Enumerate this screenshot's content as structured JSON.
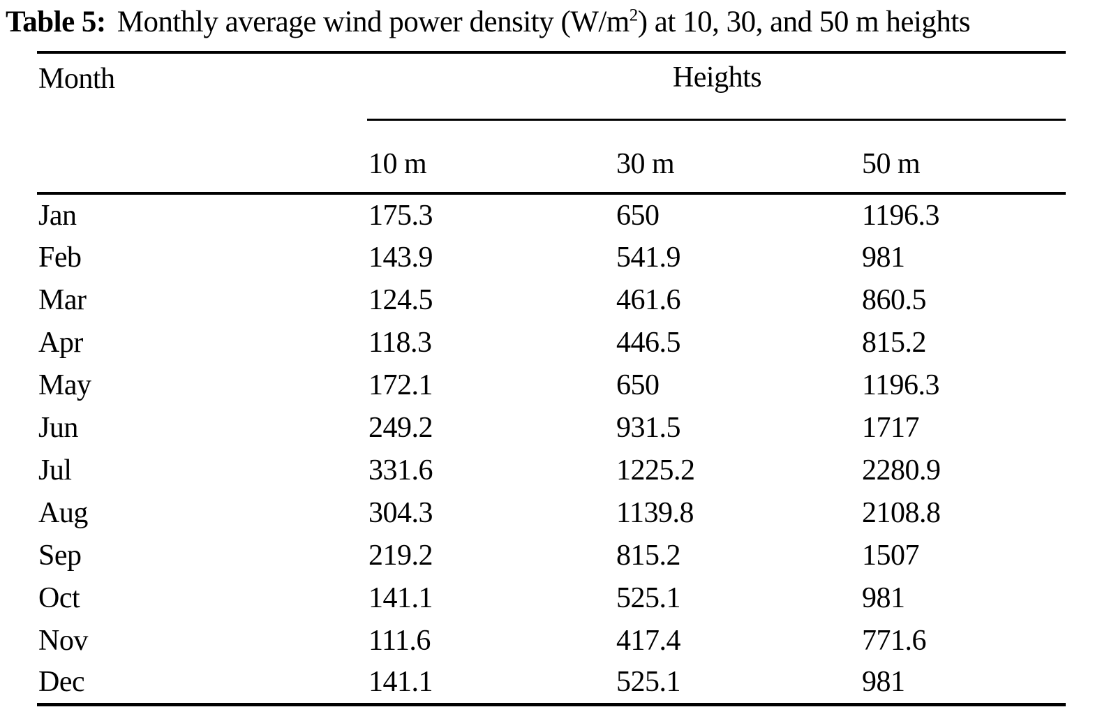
{
  "title": {
    "label": "Table 5:",
    "before_sup": "Monthly average wind power density (W/m",
    "sup": "2",
    "after_sup": ") at 10, 30, and 50 m heights"
  },
  "table": {
    "month_header": "Month",
    "group_header": "Heights",
    "subheaders": [
      "10 m",
      "30 m",
      "50 m"
    ],
    "rows": [
      {
        "month": "Jan",
        "h10": "175.3",
        "h30": "650",
        "h50": "1196.3"
      },
      {
        "month": "Feb",
        "h10": "143.9",
        "h30": "541.9",
        "h50": "981"
      },
      {
        "month": "Mar",
        "h10": "124.5",
        "h30": "461.6",
        "h50": "860.5"
      },
      {
        "month": "Apr",
        "h10": "118.3",
        "h30": "446.5",
        "h50": "815.2"
      },
      {
        "month": "May",
        "h10": "172.1",
        "h30": "650",
        "h50": "1196.3"
      },
      {
        "month": "Jun",
        "h10": "249.2",
        "h30": "931.5",
        "h50": "1717"
      },
      {
        "month": "Jul",
        "h10": "331.6",
        "h30": "1225.2",
        "h50": "2280.9"
      },
      {
        "month": "Aug",
        "h10": "304.3",
        "h30": "1139.8",
        "h50": "2108.8"
      },
      {
        "month": "Sep",
        "h10": "219.2",
        "h30": "815.2",
        "h50": "1507"
      },
      {
        "month": "Oct",
        "h10": "141.1",
        "h30": "525.1",
        "h50": "981"
      },
      {
        "month": "Nov",
        "h10": "111.6",
        "h30": "417.4",
        "h50": "771.6"
      },
      {
        "month": "Dec",
        "h10": "141.1",
        "h30": "525.1",
        "h50": "981"
      }
    ]
  },
  "chart_data": {
    "type": "table",
    "title": "Table 5: Monthly average wind power density (W/m2) at 10, 30, and 50 m heights",
    "categories": [
      "Jan",
      "Feb",
      "Mar",
      "Apr",
      "May",
      "Jun",
      "Jul",
      "Aug",
      "Sep",
      "Oct",
      "Nov",
      "Dec"
    ],
    "series": [
      {
        "name": "10 m",
        "values": [
          175.3,
          143.9,
          124.5,
          118.3,
          172.1,
          249.2,
          331.6,
          304.3,
          219.2,
          141.1,
          111.6,
          141.1
        ]
      },
      {
        "name": "30 m",
        "values": [
          650,
          541.9,
          461.6,
          446.5,
          650,
          931.5,
          1225.2,
          1139.8,
          815.2,
          525.1,
          417.4,
          525.1
        ]
      },
      {
        "name": "50 m",
        "values": [
          1196.3,
          981,
          860.5,
          815.2,
          1196.3,
          1717,
          2280.9,
          2108.8,
          1507,
          981,
          771.6,
          981
        ]
      }
    ]
  }
}
